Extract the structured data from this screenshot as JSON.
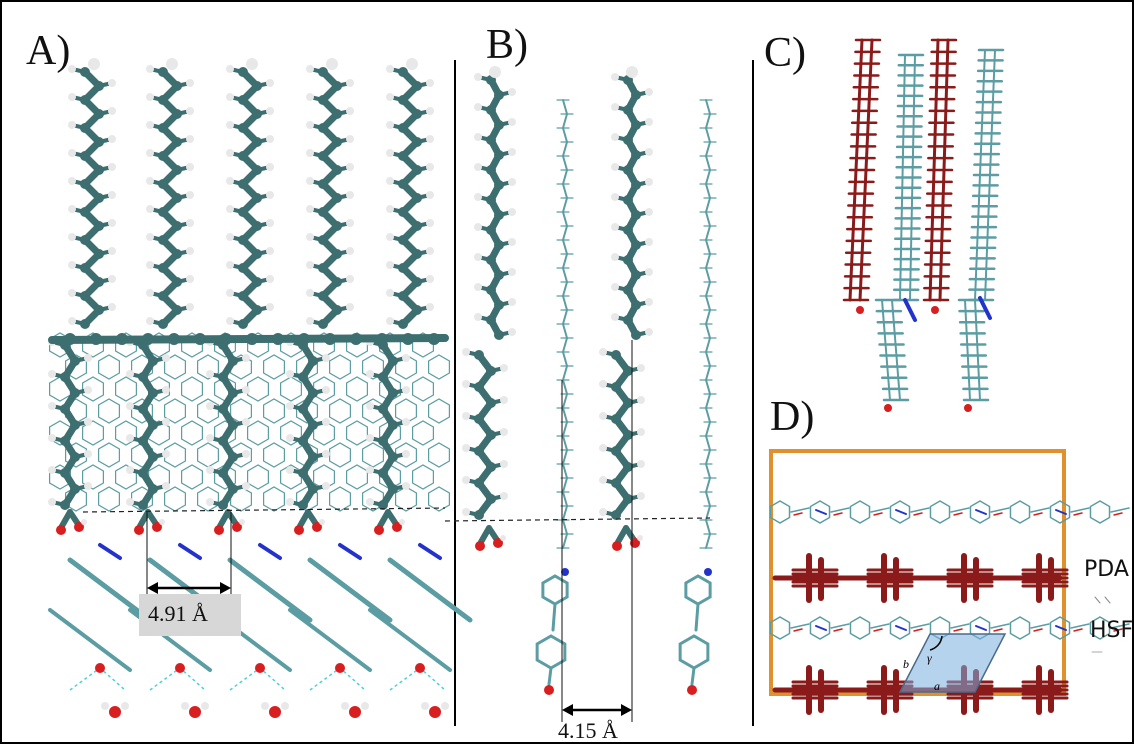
{
  "panels": {
    "a": {
      "label": "A)",
      "distance": "4.91 Å"
    },
    "b": {
      "label": "B)",
      "distance": "4.15 Å"
    },
    "c": {
      "label": "C)"
    },
    "d": {
      "label": "D)",
      "side_labels": [
        "PDA",
        "HSF"
      ],
      "cell_axes": [
        "a",
        "b",
        "γ"
      ]
    }
  },
  "colors": {
    "carbon": "#3d6e70",
    "carbon_light": "#5c9da3",
    "hydrogen": "#e8e8e8",
    "oxygen": "#d81e1e",
    "nitrogen": "#2233cc",
    "pda": "#8b1a1a",
    "frame": "#e0912e",
    "cell": "#7aaee0",
    "dashed": "#4ad0e0"
  }
}
